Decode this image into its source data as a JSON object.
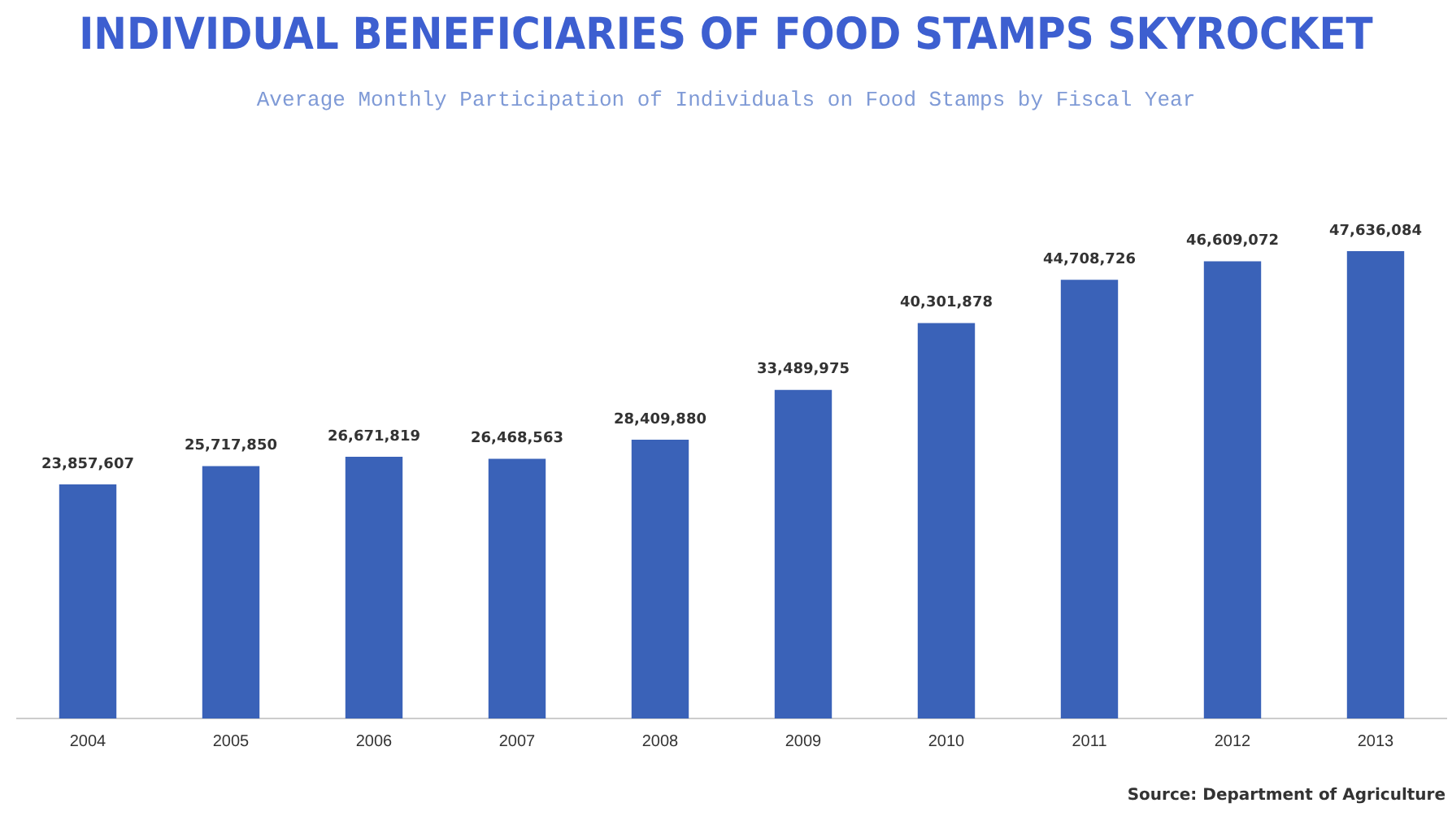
{
  "chart_data": {
    "type": "bar",
    "title": "INDIVIDUAL BENEFICIARIES OF FOOD STAMPS SKYROCKET",
    "subtitle": "Average Monthly Participation of Individuals on Food Stamps by Fiscal Year",
    "categories": [
      "2004",
      "2005",
      "2006",
      "2007",
      "2008",
      "2009",
      "2010",
      "2011",
      "2012",
      "2013"
    ],
    "values": [
      23857607,
      25717850,
      26671819,
      26468563,
      28409880,
      33489975,
      40301878,
      44708726,
      46609072,
      47636084
    ],
    "value_labels": [
      "23,857,607",
      "25,717,850",
      "26,671,819",
      "26,468,563",
      "28,409,880",
      "33,489,975",
      "40,301,878",
      "44,708,726",
      "46,609,072",
      "47,636,084"
    ],
    "color": "#3a62b8",
    "grid": false,
    "legend": false,
    "annotations": [
      "Source: Department of Agriculture"
    ]
  }
}
